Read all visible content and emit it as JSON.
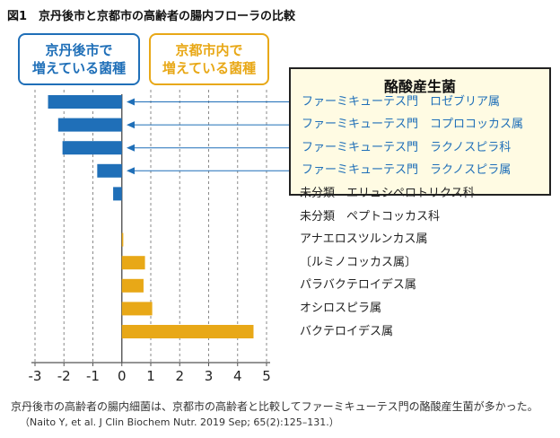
{
  "figure": {
    "title": "図1　京丹後市と京都市の高齢者の腸内フローラの比較",
    "tag_kyotango": [
      "京丹後市で",
      "増えている菌種"
    ],
    "tag_kyoto": [
      "京都市内で",
      "増えている菌種"
    ],
    "scfa_box_title": "酪酸産生菌",
    "caption": "京丹後市の高齢者の腸内細菌は、京都市の高齢者と比較してファーミキューテス門の酪酸産生菌が多かった。",
    "citation": "（Naito Y, et al. J Clin Biochem Nutr. 2019 Sep; 65(2):125–131.）"
  },
  "colors": {
    "kyotango_blue": "#1f6fb8",
    "kyoto_orange": "#e8a817",
    "box_fill": "#fffbe3",
    "grid": "#8a8a8a"
  },
  "chart_data": {
    "type": "bar",
    "orientation": "horizontal",
    "categories": [
      "ファーミキューテス門　ロゼブリア属",
      "ファーミキューテス門　コプロコッカス属",
      "ファーミキューテス門　ラクノスピラ科",
      "ファーミキューテス門　ラクノスピラ属",
      "未分類　エリュシペロトリクス科",
      "未分類　ペプトコッカス科",
      "アナエロスツルンカス属",
      "〔ルミノコッカス属〕",
      "パラバクテロイデス属",
      "オシロスピラ属",
      "バクテロイデス属"
    ],
    "values": [
      -2.55,
      -2.2,
      -2.05,
      -0.85,
      -0.3,
      0,
      0.05,
      0.8,
      0.75,
      1.05,
      4.55
    ],
    "bar_colors": [
      "blue",
      "blue",
      "blue",
      "blue",
      "blue",
      "none",
      "orange",
      "orange",
      "orange",
      "orange",
      "orange"
    ],
    "butyrate_producer": [
      true,
      true,
      true,
      true,
      false,
      false,
      false,
      false,
      false,
      false,
      false
    ],
    "xlim": [
      -3,
      5
    ],
    "xticks": [
      "-3",
      "-2",
      "-1",
      "0",
      "1",
      "2",
      "3",
      "4",
      "5"
    ],
    "grid": "dashed vertical",
    "legend": "none"
  }
}
